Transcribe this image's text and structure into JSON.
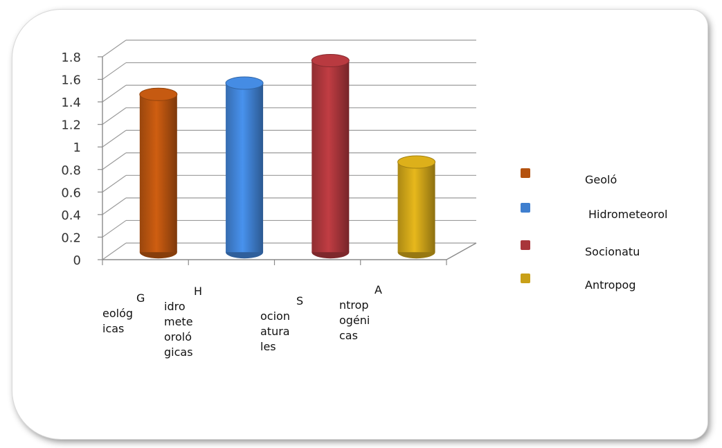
{
  "chart_data": {
    "type": "bar",
    "categories": [
      "Geológicas",
      "Hidrometeorológicas",
      "Socionaturales",
      "Antropogénicas"
    ],
    "category_label_lines": [
      [
        "G",
        "eológ",
        "icas"
      ],
      [
        "H",
        "idro",
        "mete",
        "oroló",
        "gicas"
      ],
      [
        "S",
        "ocion",
        "atura",
        "les"
      ],
      [
        "A",
        "ntrop",
        "ogéni",
        "cas"
      ]
    ],
    "values": [
      1.4,
      1.5,
      1.7,
      0.8
    ],
    "colors": [
      "#b4520f",
      "#3f7fcf",
      "#a8353a",
      "#c9a018"
    ],
    "ylim": [
      0,
      1.8
    ],
    "yticks": [
      "0",
      "0.2",
      "0.4",
      "0.6",
      "0.8",
      "1",
      "1.2",
      "1.4",
      "1.6",
      "1.8"
    ],
    "grid": true,
    "legend": {
      "position": "right",
      "entries": [
        "Geoló",
        "Hidrometeorol",
        "Socionatu",
        "Antropog"
      ]
    },
    "title": "",
    "xlabel": "",
    "ylabel": ""
  }
}
